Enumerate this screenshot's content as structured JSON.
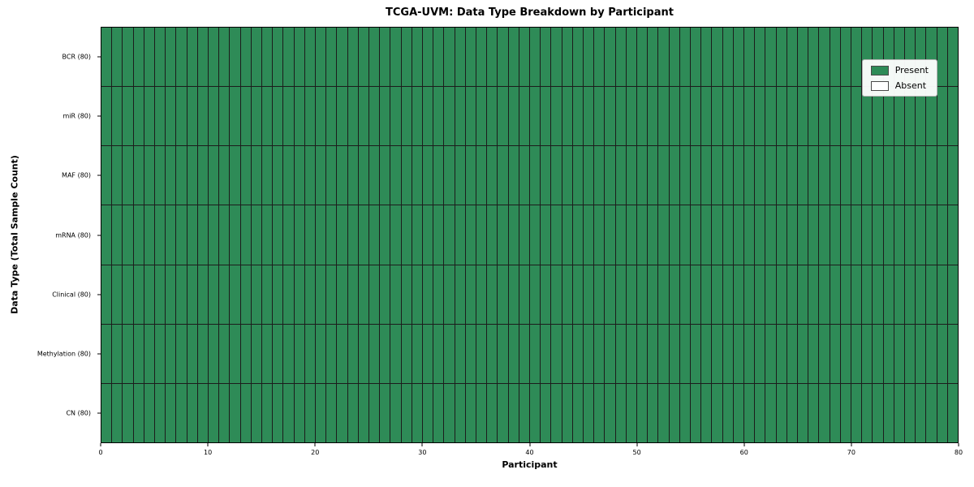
{
  "chart_data": {
    "type": "heatmap",
    "title": "TCGA-UVM: Data Type Breakdown by Participant",
    "xlabel": "Participant",
    "ylabel": "Data Type (Total Sample Count)",
    "rows": [
      "BCR (80)",
      "miR (80)",
      "MAF (80)",
      "mRNA (80)",
      "Clinical (80)",
      "Methylation (80)",
      "CN (80)"
    ],
    "participants": 80,
    "present_counts": [
      80,
      80,
      80,
      80,
      80,
      80,
      80
    ],
    "x_ticks": [
      0,
      10,
      20,
      30,
      40,
      50,
      60,
      70,
      80
    ],
    "xlim": [
      0,
      80
    ],
    "grid": "on (cell edges)",
    "legend_position": "upper right",
    "present_color": "#2e8b57",
    "absent_color": "#ffffff",
    "grid_line_color": "#1c1c1c",
    "legend": [
      {
        "label": "Present",
        "color": "#2e8b57"
      },
      {
        "label": "Absent",
        "color": "#ffffff"
      }
    ]
  }
}
